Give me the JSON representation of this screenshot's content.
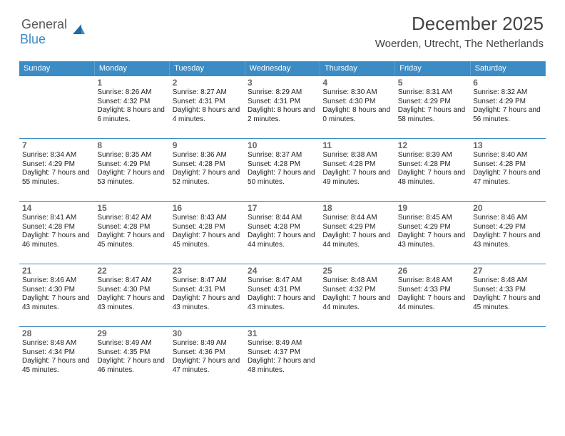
{
  "logo": {
    "word1": "General",
    "word2": "Blue"
  },
  "title": "December 2025",
  "location": "Woerden, Utrecht, The Netherlands",
  "colors": {
    "header_bg": "#3b8bc4",
    "header_text": "#ffffff",
    "rule": "#3b8bc4",
    "daynum": "#666666",
    "body_text": "#222222",
    "title_text": "#444444",
    "logo_gray": "#5a5a5a",
    "logo_blue": "#3b8bc4",
    "background": "#ffffff"
  },
  "typography": {
    "title_fontsize": 26,
    "location_fontsize": 15,
    "dayheader_fontsize": 11,
    "daynum_fontsize": 12,
    "cell_fontsize": 10
  },
  "day_headers": [
    "Sunday",
    "Monday",
    "Tuesday",
    "Wednesday",
    "Thursday",
    "Friday",
    "Saturday"
  ],
  "weeks": [
    [
      null,
      {
        "n": "1",
        "sunrise": "8:26 AM",
        "sunset": "4:32 PM",
        "daylight": "8 hours and 6 minutes."
      },
      {
        "n": "2",
        "sunrise": "8:27 AM",
        "sunset": "4:31 PM",
        "daylight": "8 hours and 4 minutes."
      },
      {
        "n": "3",
        "sunrise": "8:29 AM",
        "sunset": "4:31 PM",
        "daylight": "8 hours and 2 minutes."
      },
      {
        "n": "4",
        "sunrise": "8:30 AM",
        "sunset": "4:30 PM",
        "daylight": "8 hours and 0 minutes."
      },
      {
        "n": "5",
        "sunrise": "8:31 AM",
        "sunset": "4:29 PM",
        "daylight": "7 hours and 58 minutes."
      },
      {
        "n": "6",
        "sunrise": "8:32 AM",
        "sunset": "4:29 PM",
        "daylight": "7 hours and 56 minutes."
      }
    ],
    [
      {
        "n": "7",
        "sunrise": "8:34 AM",
        "sunset": "4:29 PM",
        "daylight": "7 hours and 55 minutes."
      },
      {
        "n": "8",
        "sunrise": "8:35 AM",
        "sunset": "4:29 PM",
        "daylight": "7 hours and 53 minutes."
      },
      {
        "n": "9",
        "sunrise": "8:36 AM",
        "sunset": "4:28 PM",
        "daylight": "7 hours and 52 minutes."
      },
      {
        "n": "10",
        "sunrise": "8:37 AM",
        "sunset": "4:28 PM",
        "daylight": "7 hours and 50 minutes."
      },
      {
        "n": "11",
        "sunrise": "8:38 AM",
        "sunset": "4:28 PM",
        "daylight": "7 hours and 49 minutes."
      },
      {
        "n": "12",
        "sunrise": "8:39 AM",
        "sunset": "4:28 PM",
        "daylight": "7 hours and 48 minutes."
      },
      {
        "n": "13",
        "sunrise": "8:40 AM",
        "sunset": "4:28 PM",
        "daylight": "7 hours and 47 minutes."
      }
    ],
    [
      {
        "n": "14",
        "sunrise": "8:41 AM",
        "sunset": "4:28 PM",
        "daylight": "7 hours and 46 minutes."
      },
      {
        "n": "15",
        "sunrise": "8:42 AM",
        "sunset": "4:28 PM",
        "daylight": "7 hours and 45 minutes."
      },
      {
        "n": "16",
        "sunrise": "8:43 AM",
        "sunset": "4:28 PM",
        "daylight": "7 hours and 45 minutes."
      },
      {
        "n": "17",
        "sunrise": "8:44 AM",
        "sunset": "4:28 PM",
        "daylight": "7 hours and 44 minutes."
      },
      {
        "n": "18",
        "sunrise": "8:44 AM",
        "sunset": "4:29 PM",
        "daylight": "7 hours and 44 minutes."
      },
      {
        "n": "19",
        "sunrise": "8:45 AM",
        "sunset": "4:29 PM",
        "daylight": "7 hours and 43 minutes."
      },
      {
        "n": "20",
        "sunrise": "8:46 AM",
        "sunset": "4:29 PM",
        "daylight": "7 hours and 43 minutes."
      }
    ],
    [
      {
        "n": "21",
        "sunrise": "8:46 AM",
        "sunset": "4:30 PM",
        "daylight": "7 hours and 43 minutes."
      },
      {
        "n": "22",
        "sunrise": "8:47 AM",
        "sunset": "4:30 PM",
        "daylight": "7 hours and 43 minutes."
      },
      {
        "n": "23",
        "sunrise": "8:47 AM",
        "sunset": "4:31 PM",
        "daylight": "7 hours and 43 minutes."
      },
      {
        "n": "24",
        "sunrise": "8:47 AM",
        "sunset": "4:31 PM",
        "daylight": "7 hours and 43 minutes."
      },
      {
        "n": "25",
        "sunrise": "8:48 AM",
        "sunset": "4:32 PM",
        "daylight": "7 hours and 44 minutes."
      },
      {
        "n": "26",
        "sunrise": "8:48 AM",
        "sunset": "4:33 PM",
        "daylight": "7 hours and 44 minutes."
      },
      {
        "n": "27",
        "sunrise": "8:48 AM",
        "sunset": "4:33 PM",
        "daylight": "7 hours and 45 minutes."
      }
    ],
    [
      {
        "n": "28",
        "sunrise": "8:48 AM",
        "sunset": "4:34 PM",
        "daylight": "7 hours and 45 minutes."
      },
      {
        "n": "29",
        "sunrise": "8:49 AM",
        "sunset": "4:35 PM",
        "daylight": "7 hours and 46 minutes."
      },
      {
        "n": "30",
        "sunrise": "8:49 AM",
        "sunset": "4:36 PM",
        "daylight": "7 hours and 47 minutes."
      },
      {
        "n": "31",
        "sunrise": "8:49 AM",
        "sunset": "4:37 PM",
        "daylight": "7 hours and 48 minutes."
      },
      null,
      null,
      null
    ]
  ],
  "labels": {
    "sunrise": "Sunrise:",
    "sunset": "Sunset:",
    "daylight": "Daylight:"
  }
}
